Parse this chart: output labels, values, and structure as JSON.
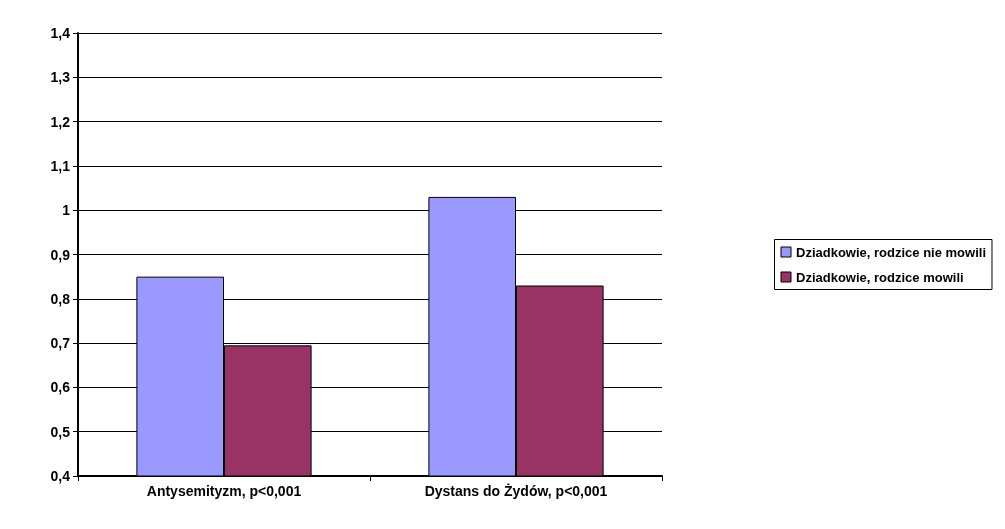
{
  "chart_data": {
    "type": "bar",
    "categories": [
      "Antysemityzm, p<0,001",
      "Dystans do Żydów, p<0,001"
    ],
    "series": [
      {
        "name": "Dziadkowie, rodzice nie mowili",
        "color": "#9999ff",
        "values": [
          0.85,
          1.03
        ]
      },
      {
        "name": "Dziadkowie, rodzice mowili",
        "color": "#993366",
        "values": [
          0.695,
          0.83
        ]
      }
    ],
    "ylim": [
      0.4,
      1.4
    ],
    "yticks": [
      {
        "value": 0.4,
        "label": "0,4"
      },
      {
        "value": 0.5,
        "label": "0,5"
      },
      {
        "value": 0.6,
        "label": "0,6"
      },
      {
        "value": 0.7,
        "label": "0,7"
      },
      {
        "value": 0.8,
        "label": "0,8"
      },
      {
        "value": 0.9,
        "label": "0,9"
      },
      1,
      {
        "value": 1.1,
        "label": "1,1"
      },
      {
        "value": 1.2,
        "label": "1,2"
      },
      {
        "value": 1.3,
        "label": "1,3"
      },
      {
        "value": 1.4,
        "label": "1,4"
      }
    ],
    "grid": "y",
    "legend": "right"
  }
}
